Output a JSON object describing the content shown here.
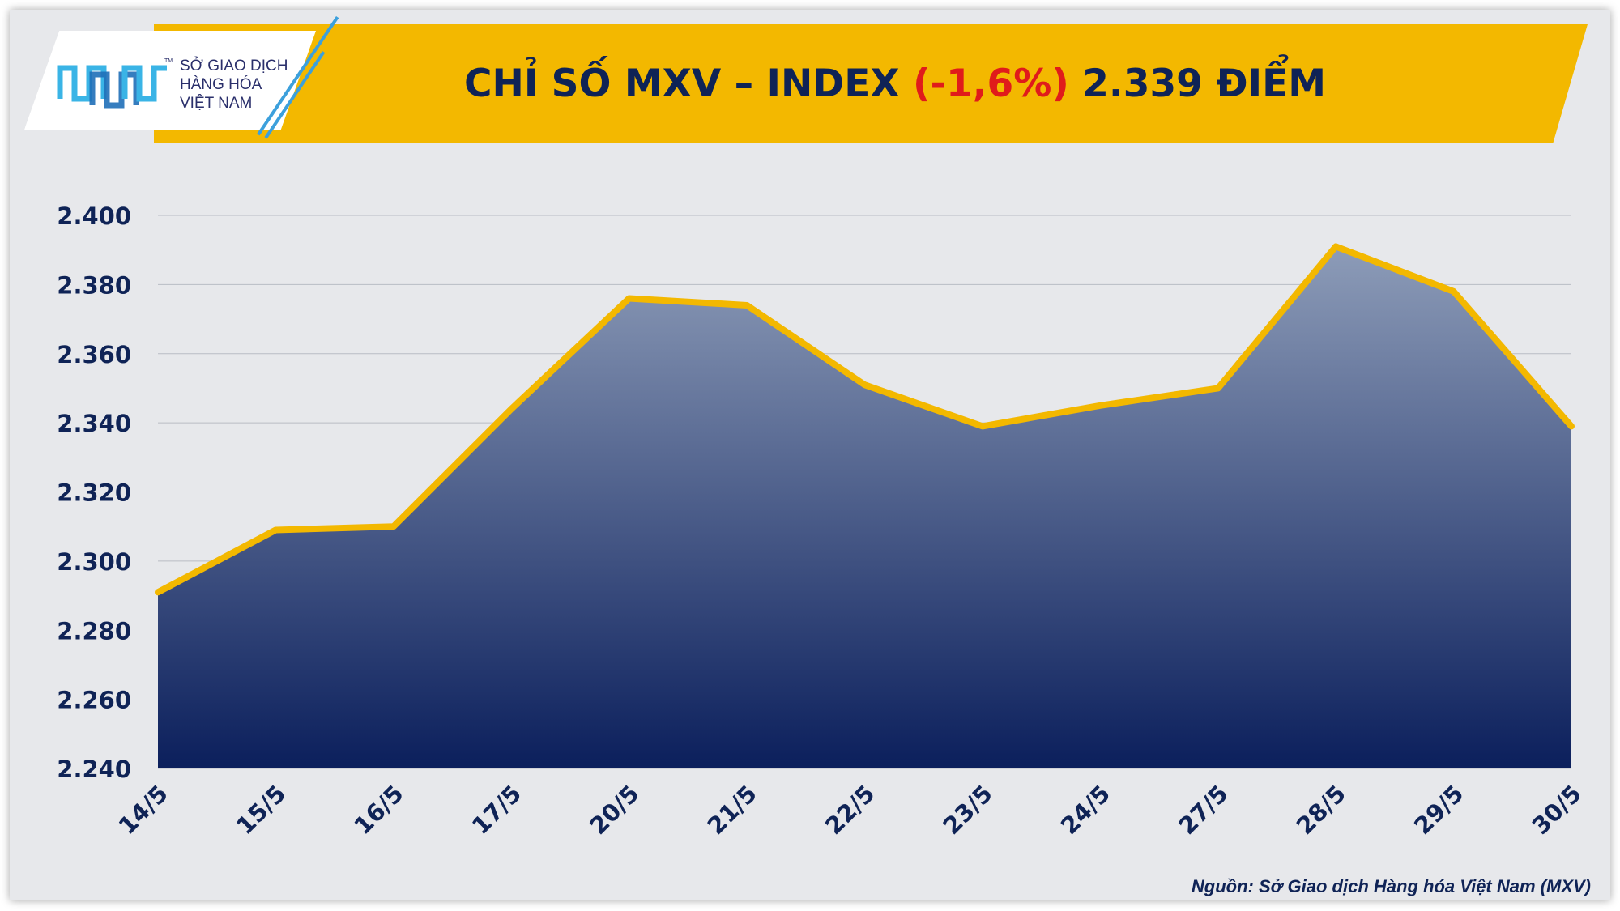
{
  "header": {
    "title_prefix": "CHỈ SỐ MXV – INDEX",
    "title_change": "(-1,6%)",
    "title_suffix": "2.339 ĐIỂM",
    "change_color": "#e01b1b",
    "banner_color": "#f3b800"
  },
  "logo": {
    "line1": "SỞ GIAO DỊCH",
    "line2": "HÀNG HÓA",
    "line3": "VIỆT NAM",
    "tm": "TM",
    "icon": "mxv-logo-mark"
  },
  "source": "Nguồn: Sở Giao dịch Hàng hóa Việt Nam (MXV)",
  "chart_data": {
    "type": "area",
    "categories": [
      "14/5",
      "15/5",
      "16/5",
      "17/5",
      "20/5",
      "21/5",
      "22/5",
      "23/5",
      "24/5",
      "27/5",
      "28/5",
      "29/5",
      "30/5"
    ],
    "values": [
      2291,
      2309,
      2310,
      2344,
      2376,
      2374,
      2351,
      2339,
      2345,
      2350,
      2391,
      2378,
      2339
    ],
    "ylim": [
      2240,
      2400
    ],
    "yticks": [
      2240,
      2260,
      2280,
      2300,
      2320,
      2340,
      2360,
      2380,
      2400
    ],
    "ytick_labels": [
      "2.240",
      "2.260",
      "2.280",
      "2.300",
      "2.320",
      "2.340",
      "2.360",
      "2.380",
      "2.400"
    ],
    "grid": true,
    "line_color": "#f3b800",
    "fill_top_color": "#8d9cb8",
    "fill_bottom_color": "#0b1f5c"
  }
}
